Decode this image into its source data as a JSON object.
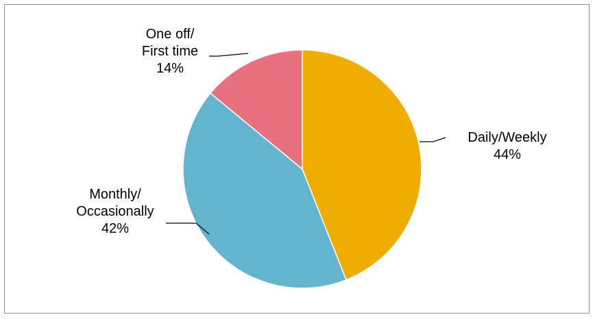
{
  "chart_data": {
    "type": "pie",
    "title": "",
    "start_angle_deg": 0,
    "direction": "clockwise",
    "slices": [
      {
        "name": "Daily/Weekly",
        "label_lines": [
          "Daily/Weekly"
        ],
        "value": 44,
        "value_label": "44%",
        "color": "#F0AC00"
      },
      {
        "name": "Monthly/Occasionally",
        "label_lines": [
          "Monthly/",
          "Occasionally"
        ],
        "value": 42,
        "value_label": "42%",
        "color": "#62B5CC"
      },
      {
        "name": "One off/First time",
        "label_lines": [
          "One off/",
          "First time"
        ],
        "value": 14,
        "value_label": "14%",
        "color": "#E8707F"
      }
    ],
    "legend": "none",
    "data_labels": "outside-with-leader-lines"
  }
}
